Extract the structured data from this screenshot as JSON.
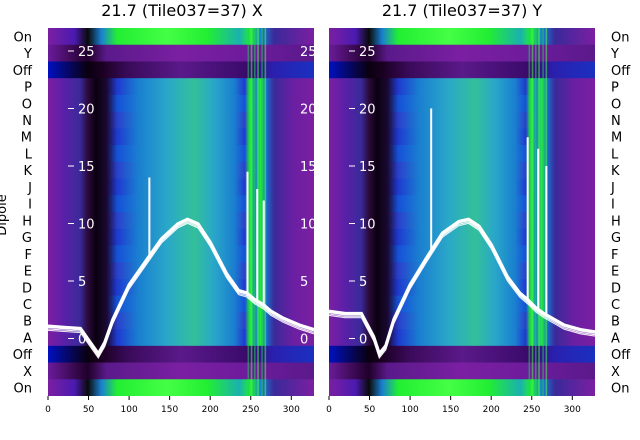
{
  "chart_data": [
    {
      "type": "heatmap",
      "title": "21.7 (Tile037=37) X",
      "ylabel": "Dipole",
      "xlim": [
        0,
        328
      ],
      "ylim": [
        -5,
        27
      ],
      "xticks": [
        0,
        50,
        100,
        150,
        200,
        250,
        300
      ],
      "yticks_inner": [
        0,
        5,
        10,
        15,
        20,
        25
      ],
      "row_labels": [
        "On",
        "X",
        "Off",
        "A",
        "B",
        "C",
        "D",
        "E",
        "F",
        "G",
        "H",
        "I",
        "J",
        "K",
        "L",
        "M",
        "N",
        "O",
        "P",
        "Off",
        "Y",
        "On"
      ],
      "colors": {
        "line": "#ffffff",
        "bright": "#00ff00",
        "dark": "#111111",
        "mid": "#0077cc",
        "base": "#7b1fa2"
      },
      "overlay_line": {
        "x": [
          0,
          20,
          40,
          55,
          62,
          70,
          80,
          100,
          120,
          140,
          160,
          172,
          185,
          200,
          220,
          235,
          245,
          255,
          265,
          275,
          290,
          310,
          328
        ],
        "y": [
          0.9,
          0.8,
          0.7,
          -0.8,
          -1.5,
          -0.5,
          1.5,
          4.5,
          6.5,
          8.5,
          9.8,
          10.2,
          9.8,
          8.2,
          5.5,
          4.0,
          3.8,
          3.2,
          2.8,
          2.2,
          1.6,
          1.0,
          0.6
        ],
        "spikes": [
          {
            "x": 125,
            "y": 14.0
          },
          {
            "x": 246,
            "y": 14.5
          },
          {
            "x": 258,
            "y": 13.0
          },
          {
            "x": 266,
            "y": 12.0
          }
        ]
      }
    },
    {
      "type": "heatmap",
      "title": "21.7 (Tile037=37) Y",
      "xlim": [
        0,
        328
      ],
      "ylim": [
        -5,
        27
      ],
      "xticks": [
        0,
        50,
        100,
        150,
        200,
        250,
        300
      ],
      "yticks_inner": [
        0,
        5,
        10,
        15,
        20,
        25
      ],
      "row_labels": [
        "On",
        "X",
        "Off",
        "A",
        "B",
        "C",
        "D",
        "E",
        "F",
        "G",
        "H",
        "I",
        "J",
        "K",
        "L",
        "M",
        "N",
        "O",
        "P",
        "Off",
        "Y",
        "On"
      ],
      "colors": {
        "line": "#ffffff",
        "bright": "#00ff00",
        "dark": "#111111",
        "mid": "#0077cc",
        "base": "#7b1fa2"
      },
      "overlay_line": {
        "x": [
          0,
          20,
          40,
          55,
          62,
          70,
          80,
          100,
          120,
          140,
          160,
          172,
          185,
          200,
          220,
          235,
          245,
          255,
          265,
          275,
          290,
          310,
          328
        ],
        "y": [
          2.2,
          2.0,
          2.0,
          0.0,
          -1.5,
          -0.8,
          1.5,
          4.5,
          6.8,
          9.0,
          10.0,
          10.2,
          9.6,
          8.0,
          5.2,
          3.8,
          3.2,
          2.5,
          2.0,
          1.6,
          1.0,
          0.6,
          0.4
        ],
        "spikes": [
          {
            "x": 126,
            "y": 20.0
          },
          {
            "x": 245,
            "y": 17.5
          },
          {
            "x": 258,
            "y": 16.5
          },
          {
            "x": 268,
            "y": 15.0
          }
        ]
      }
    }
  ]
}
